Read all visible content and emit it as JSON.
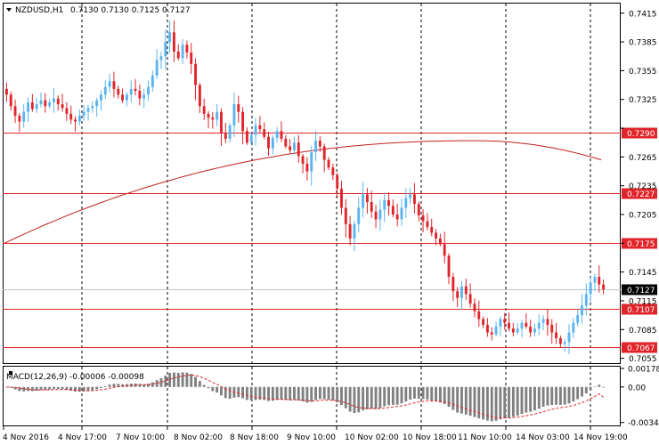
{
  "header": {
    "symbol_label": "NZDUSD,H1",
    "ohlc_text": "0.7130 0.7130 0.7125 0.7127"
  },
  "colors": {
    "bull": "#5ab4f0",
    "bear": "#e0252a",
    "level_line": "#e0252a",
    "ma_line": "#c0201f",
    "grid": "#000000",
    "macd_hist": "#808080",
    "macd_signal": "#e0252a"
  },
  "chart_data": [
    {
      "type": "candlestick",
      "symbol": "NZDUSD",
      "timeframe": "H1",
      "ylim": [
        0.705,
        0.7425
      ],
      "yticks": [
        "0.7415",
        "0.7385",
        "0.7355",
        "0.7325",
        "0.7295",
        "0.7265",
        "0.7235",
        "0.7205",
        "0.7175",
        "0.7145",
        "0.7115",
        "0.7085",
        "0.7055"
      ],
      "xticks": [
        "4 Nov 2016",
        "4 Nov 17:00",
        "7 Nov 10:00",
        "8 Nov 02:00",
        "8 Nov 18:00",
        "9 Nov 10:00",
        "10 Nov 02:00",
        "10 Nov 18:00",
        "11 Nov 10:00",
        "14 Nov 03:00",
        "14 Nov 19:00"
      ],
      "price_levels": [
        {
          "label": "0.7290",
          "value": 0.729
        },
        {
          "label": "0.7227",
          "value": 0.7227
        },
        {
          "label": "0.7175",
          "value": 0.7175
        },
        {
          "label": "0.7107",
          "value": 0.7107
        },
        {
          "label": "0.7067",
          "value": 0.7067
        }
      ],
      "current_price": {
        "label": "0.7127",
        "value": 0.7127
      },
      "path": [
        0.733,
        0.7318,
        0.7308,
        0.7302,
        0.7312,
        0.7322,
        0.7315,
        0.732,
        0.7324,
        0.7318,
        0.7322,
        0.7326,
        0.732,
        0.7316,
        0.731,
        0.7304,
        0.7302,
        0.7308,
        0.7312,
        0.7316,
        0.7318,
        0.7324,
        0.733,
        0.7338,
        0.7344,
        0.7336,
        0.733,
        0.7324,
        0.733,
        0.7336,
        0.7334,
        0.7326,
        0.733,
        0.7338,
        0.735,
        0.7366,
        0.737,
        0.7385,
        0.7395,
        0.7375,
        0.7368,
        0.7382,
        0.7374,
        0.7362,
        0.734,
        0.7318,
        0.731,
        0.7306,
        0.7304,
        0.7312,
        0.729,
        0.7284,
        0.7298,
        0.732,
        0.7312,
        0.7292,
        0.728,
        0.7288,
        0.7298,
        0.7294,
        0.7286,
        0.7274,
        0.7285,
        0.7292,
        0.7284,
        0.7276,
        0.7272,
        0.728,
        0.7266,
        0.7258,
        0.725,
        0.727,
        0.7282,
        0.7276,
        0.7262,
        0.7254,
        0.7246,
        0.7232,
        0.7212,
        0.7195,
        0.718,
        0.7195,
        0.7212,
        0.7226,
        0.7218,
        0.7208,
        0.72,
        0.721,
        0.722,
        0.7214,
        0.7205,
        0.72,
        0.7212,
        0.7222,
        0.7226,
        0.7216,
        0.7204,
        0.7198,
        0.7192,
        0.7186,
        0.718,
        0.7174,
        0.7162,
        0.714,
        0.7125,
        0.7118,
        0.713,
        0.7122,
        0.7112,
        0.7104,
        0.7096,
        0.709,
        0.7082,
        0.708,
        0.7088,
        0.7096,
        0.7092,
        0.7086,
        0.7082,
        0.7086,
        0.7092,
        0.7088,
        0.7082,
        0.7086,
        0.7092,
        0.7096,
        0.709,
        0.7082,
        0.7076,
        0.707,
        0.7072,
        0.7082,
        0.7092,
        0.71,
        0.711,
        0.7122,
        0.7134,
        0.714,
        0.7132,
        0.7127
      ],
      "moving_average": {
        "start": 0.7175,
        "peak": 0.7282,
        "peak_at": 0.79,
        "end": 0.7262
      }
    },
    {
      "type": "histogram",
      "name": "MACD(12,26,9)",
      "label": "MACD(12,26,9)",
      "values_text": "-0.00006 -0.00098",
      "ylim": [
        -0.0037,
        0.00195
      ],
      "yticks": [
        "0.00178",
        "0.00",
        "-0.00342"
      ],
      "macd_main": -6e-05,
      "macd_signal": -0.00098
    }
  ]
}
